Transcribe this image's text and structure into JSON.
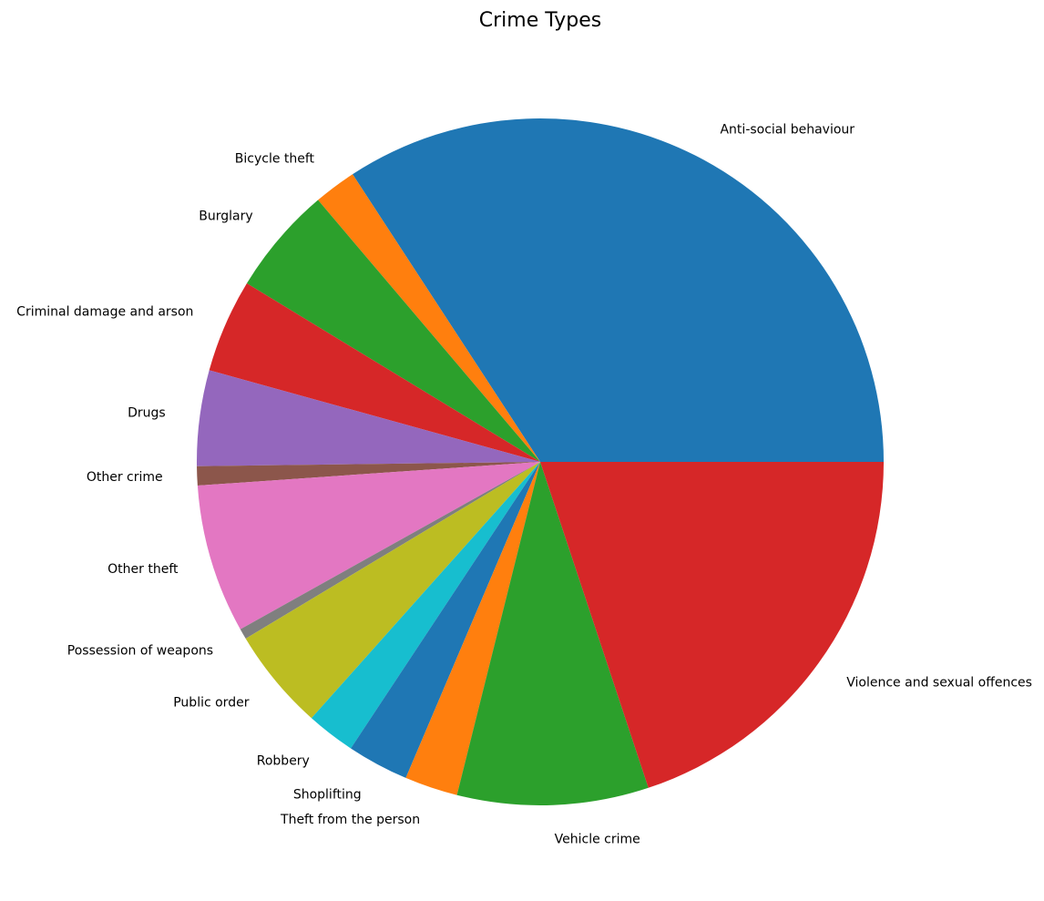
{
  "chart_data": {
    "type": "pie",
    "title": "Crime Types",
    "start_angle_deg": 0,
    "direction": "counterclockwise",
    "slices": [
      {
        "label": "Anti-social behaviour",
        "value": 34.2,
        "color": "#1f77b4"
      },
      {
        "label": "Bicycle theft",
        "value": 2.0,
        "color": "#ff7f0e"
      },
      {
        "label": "Burglary",
        "value": 5.1,
        "color": "#2ca02c"
      },
      {
        "label": "Criminal damage and arson",
        "value": 4.4,
        "color": "#d62728"
      },
      {
        "label": "Drugs",
        "value": 4.5,
        "color": "#9467bd"
      },
      {
        "label": "Other crime",
        "value": 0.9,
        "color": "#8c564b"
      },
      {
        "label": "Other theft",
        "value": 7.0,
        "color": "#e377c2"
      },
      {
        "label": "Possession of weapons",
        "value": 0.5,
        "color": "#7f7f7f"
      },
      {
        "label": "Public order",
        "value": 4.8,
        "color": "#bcbd22"
      },
      {
        "label": "Robbery",
        "value": 2.3,
        "color": "#17becf"
      },
      {
        "label": "Shoplifting",
        "value": 2.9,
        "color": "#1f77b4"
      },
      {
        "label": "Theft from the person",
        "value": 2.5,
        "color": "#ff7f0e"
      },
      {
        "label": "Vehicle crime",
        "value": 9.0,
        "color": "#2ca02c"
      },
      {
        "label": "Violence and sexual offences",
        "value": 19.9,
        "color": "#d62728"
      }
    ]
  }
}
